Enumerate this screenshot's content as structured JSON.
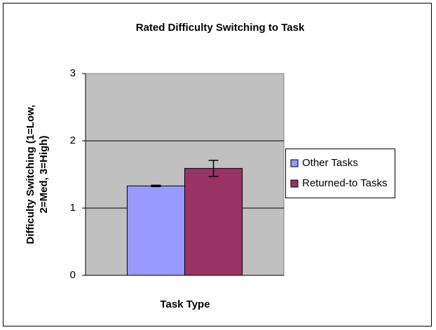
{
  "chart_data": {
    "type": "bar",
    "title": "Rated Difficulty Switching to Task",
    "xlabel": "Task Type",
    "ylabel": [
      "Difficulty Switching (1=Low,",
      "2=Med, 3=High)"
    ],
    "categories": [
      null
    ],
    "series": [
      {
        "name": "Other Tasks",
        "color": "#9999ff",
        "values": [
          1.33
        ],
        "errors": [
          0.01
        ]
      },
      {
        "name": "Returned-to Tasks",
        "color": "#993366",
        "values": [
          1.59
        ],
        "errors": [
          0.12
        ]
      }
    ],
    "ylim": [
      0,
      3
    ],
    "yticks": [
      0,
      1,
      2,
      3
    ],
    "grid": true,
    "legend": "right"
  }
}
